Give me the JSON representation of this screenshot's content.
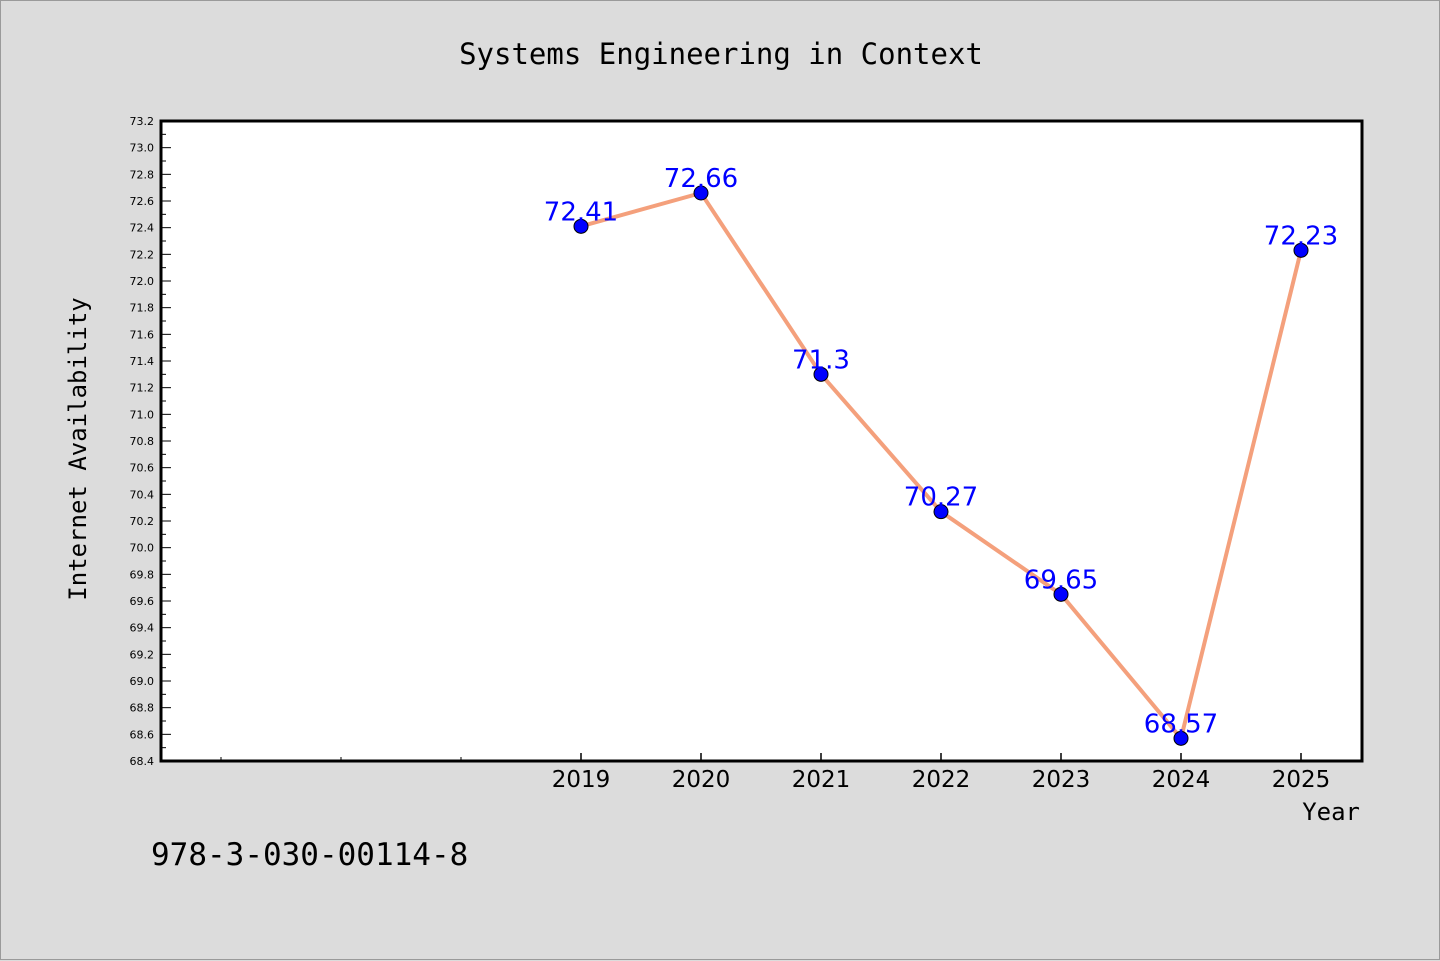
{
  "chart_data": {
    "type": "line",
    "title": "Systems Engineering in Context",
    "xlabel": "Year",
    "ylabel": "Internet Availability",
    "categories": [
      "2019",
      "2020",
      "2021",
      "2022",
      "2023",
      "2024",
      "2025"
    ],
    "series": [
      {
        "values": [
          72.41,
          72.66,
          71.3,
          70.27,
          69.65,
          68.57,
          72.23
        ],
        "data_labels": [
          "72.41",
          "72.66",
          "71.3",
          "70.27",
          "69.65",
          "68.57",
          "72.23"
        ]
      }
    ],
    "ylim": [
      68.4,
      73.2
    ],
    "yticks": [
      "68.4",
      "68.6",
      "68.8",
      "69.0",
      "69.2",
      "69.4",
      "69.6",
      "69.8",
      "70.0",
      "70.2",
      "70.4",
      "70.6",
      "70.8",
      "71.0",
      "71.2",
      "71.4",
      "71.6",
      "71.8",
      "72.0",
      "72.2",
      "72.4",
      "72.6",
      "72.8",
      "73.0",
      "73.2"
    ],
    "grid": false,
    "line_color": "#f4a07c",
    "marker_color": "#0000ff",
    "label_color": "#0000ff",
    "background_color": "#dcdcdc",
    "plot_background_color": "#ffffff"
  },
  "footer": {
    "isbn": "978-3-030-00114-8"
  }
}
